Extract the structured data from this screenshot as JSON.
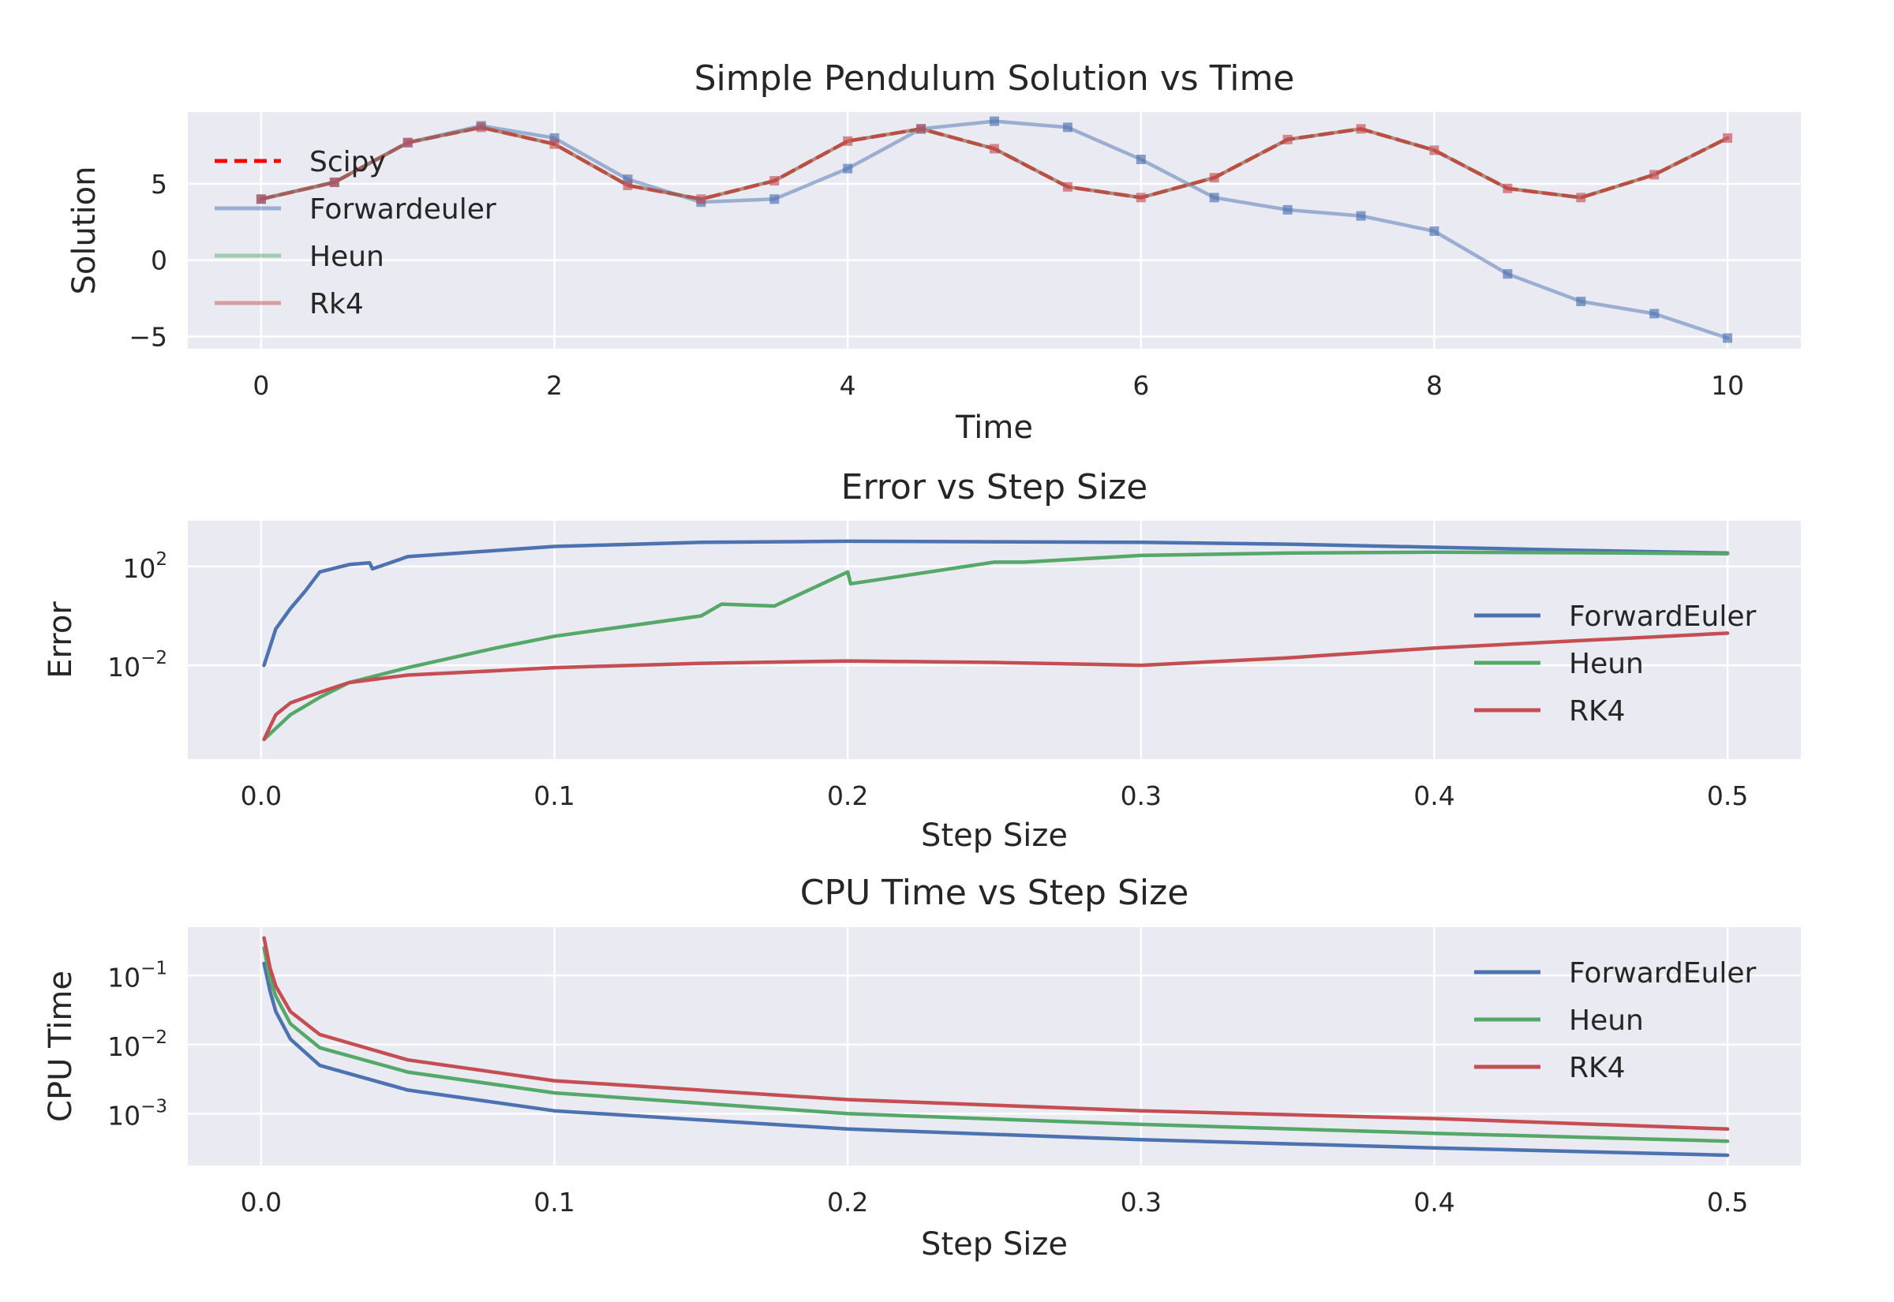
{
  "colors": {
    "background": "#eaeaf2",
    "grid": "#ffffff",
    "scipy": "#ff0000",
    "forward_euler": "#4c72b0",
    "heun": "#55a868",
    "rk4": "#c44e52"
  },
  "chart_data": [
    {
      "type": "line",
      "title": "Simple Pendulum Solution vs Time",
      "xlabel": "Time",
      "ylabel": "Solution",
      "xlim": [
        -0.5,
        10.5
      ],
      "ylim": [
        -5.8,
        9.7
      ],
      "xticks": [
        0,
        2,
        4,
        6,
        8,
        10
      ],
      "xtick_labels": [
        "0",
        "2",
        "4",
        "6",
        "8",
        "10"
      ],
      "yticks": [
        -5,
        0,
        5
      ],
      "ytick_labels": [
        "−5",
        "0",
        "5"
      ],
      "grid": true,
      "legend_position": "upper-left",
      "markers_x": [
        0,
        0.5,
        1,
        1.5,
        2,
        2.5,
        3,
        3.5,
        4,
        4.5,
        5,
        5.5,
        6,
        6.5,
        7,
        7.5,
        8,
        8.5,
        9,
        9.5,
        10
      ],
      "series": [
        {
          "name": "Scipy",
          "color_key": "scipy",
          "style": "dashed",
          "x": [
            0,
            0.5,
            1,
            1.5,
            2,
            2.5,
            3,
            3.5,
            4,
            4.5,
            5,
            5.5,
            6,
            6.5,
            7,
            7.5,
            8,
            8.5,
            9,
            9.5,
            10
          ],
          "values": [
            4.0,
            5.1,
            7.7,
            8.7,
            7.6,
            4.9,
            4.0,
            5.2,
            7.8,
            8.6,
            7.3,
            4.8,
            4.1,
            5.4,
            7.9,
            8.6,
            7.2,
            4.7,
            4.1,
            5.6,
            8.0
          ]
        },
        {
          "name": "Forwardeuler",
          "color_key": "forward_euler",
          "style": "solid",
          "alpha": 0.5,
          "x": [
            0,
            0.5,
            1,
            1.5,
            2,
            2.5,
            3,
            3.5,
            4,
            4.5,
            5,
            5.5,
            6,
            6.5,
            7,
            7.5,
            8,
            8.5,
            9,
            9.5,
            10
          ],
          "values": [
            4.0,
            5.1,
            7.7,
            8.8,
            8.0,
            5.3,
            3.8,
            4.0,
            6.0,
            8.6,
            9.1,
            8.7,
            6.6,
            4.1,
            3.3,
            2.9,
            1.9,
            -0.9,
            -2.7,
            -3.5,
            -5.1
          ]
        },
        {
          "name": "Heun",
          "color_key": "heun",
          "style": "solid",
          "alpha": 0.5,
          "x": [
            0,
            0.5,
            1,
            1.5,
            2,
            2.5,
            3,
            3.5,
            4,
            4.5,
            5,
            5.5,
            6,
            6.5,
            7,
            7.5,
            8,
            8.5,
            9,
            9.5,
            10
          ],
          "values": [
            4.0,
            5.1,
            7.7,
            8.7,
            7.6,
            4.9,
            4.0,
            5.2,
            7.8,
            8.6,
            7.3,
            4.8,
            4.1,
            5.4,
            7.9,
            8.6,
            7.2,
            4.7,
            4.1,
            5.6,
            8.0
          ]
        },
        {
          "name": "Rk4",
          "color_key": "rk4",
          "style": "solid",
          "alpha": 0.5,
          "x": [
            0,
            0.5,
            1,
            1.5,
            2,
            2.5,
            3,
            3.5,
            4,
            4.5,
            5,
            5.5,
            6,
            6.5,
            7,
            7.5,
            8,
            8.5,
            9,
            9.5,
            10
          ],
          "values": [
            4.0,
            5.1,
            7.7,
            8.7,
            7.6,
            4.9,
            4.0,
            5.2,
            7.8,
            8.6,
            7.3,
            4.8,
            4.1,
            5.4,
            7.9,
            8.6,
            7.2,
            4.7,
            4.1,
            5.6,
            8.0
          ]
        }
      ]
    },
    {
      "type": "line",
      "title": "Error vs Step Size",
      "xlabel": "Step Size",
      "ylabel": "Error",
      "yscale": "log",
      "xlim": [
        -0.025,
        0.525
      ],
      "ylim_log10": [
        -5.8,
        3.85
      ],
      "xticks": [
        0.0,
        0.1,
        0.2,
        0.3,
        0.4,
        0.5
      ],
      "xtick_labels": [
        "0.0",
        "0.1",
        "0.2",
        "0.3",
        "0.4",
        "0.5"
      ],
      "yticks_log10": [
        2,
        -2
      ],
      "ytick_base": "10",
      "ytick_exponents": [
        "2",
        "−2"
      ],
      "grid": true,
      "legend_position": "center-right",
      "series": [
        {
          "name": "ForwardEuler",
          "color_key": "forward_euler",
          "x": [
            0.001,
            0.005,
            0.01,
            0.015,
            0.02,
            0.03,
            0.037,
            0.038,
            0.05,
            0.1,
            0.15,
            0.2,
            0.25,
            0.3,
            0.35,
            0.4,
            0.45,
            0.5
          ],
          "values": [
            0.01,
            0.3,
            2,
            10,
            60,
            120,
            140,
            80,
            250,
            650,
            950,
            1050,
            1000,
            950,
            800,
            600,
            450,
            350
          ]
        },
        {
          "name": "Heun",
          "color_key": "heun",
          "x": [
            0.001,
            0.01,
            0.02,
            0.03,
            0.05,
            0.08,
            0.1,
            0.15,
            0.157,
            0.175,
            0.2,
            0.201,
            0.25,
            0.26,
            0.3,
            0.35,
            0.4,
            0.45,
            0.5
          ],
          "values": [
            1e-05,
            0.0001,
            0.0005,
            0.002,
            0.008,
            0.05,
            0.15,
            1.0,
            3.0,
            2.5,
            60,
            20,
            150,
            150,
            280,
            350,
            380,
            360,
            330
          ]
        },
        {
          "name": "RK4",
          "color_key": "rk4",
          "x": [
            0.001,
            0.005,
            0.01,
            0.02,
            0.03,
            0.05,
            0.08,
            0.1,
            0.15,
            0.2,
            0.25,
            0.3,
            0.35,
            0.4,
            0.45,
            0.5
          ],
          "values": [
            1e-05,
            0.0001,
            0.0003,
            0.0008,
            0.002,
            0.004,
            0.006,
            0.008,
            0.012,
            0.015,
            0.013,
            0.01,
            0.02,
            0.05,
            0.1,
            0.2
          ]
        }
      ]
    },
    {
      "type": "line",
      "title": "CPU Time vs Step Size",
      "xlabel": "Step Size",
      "ylabel": "CPU Time",
      "yscale": "log",
      "xlim": [
        -0.025,
        0.525
      ],
      "ylim_log10": [
        -3.75,
        -0.3
      ],
      "xticks": [
        0.0,
        0.1,
        0.2,
        0.3,
        0.4,
        0.5
      ],
      "xtick_labels": [
        "0.0",
        "0.1",
        "0.2",
        "0.3",
        "0.4",
        "0.5"
      ],
      "yticks_log10": [
        -1,
        -2,
        -3
      ],
      "ytick_base": "10",
      "ytick_exponents": [
        "−1",
        "−2",
        "−3"
      ],
      "grid": true,
      "legend_position": "upper-right",
      "series": [
        {
          "name": "ForwardEuler",
          "color_key": "forward_euler",
          "x": [
            0.001,
            0.003,
            0.005,
            0.01,
            0.02,
            0.05,
            0.1,
            0.2,
            0.3,
            0.4,
            0.5
          ],
          "values": [
            0.15,
            0.06,
            0.03,
            0.012,
            0.005,
            0.0022,
            0.0011,
            0.0006,
            0.00042,
            0.00032,
            0.00025
          ]
        },
        {
          "name": "Heun",
          "color_key": "heun",
          "x": [
            0.001,
            0.003,
            0.005,
            0.01,
            0.02,
            0.05,
            0.1,
            0.2,
            0.3,
            0.4,
            0.5
          ],
          "values": [
            0.25,
            0.09,
            0.05,
            0.02,
            0.009,
            0.004,
            0.002,
            0.001,
            0.0007,
            0.00052,
            0.0004
          ]
        },
        {
          "name": "RK4",
          "color_key": "rk4",
          "x": [
            0.001,
            0.003,
            0.005,
            0.01,
            0.02,
            0.05,
            0.1,
            0.2,
            0.3,
            0.4,
            0.5
          ],
          "values": [
            0.35,
            0.13,
            0.07,
            0.03,
            0.014,
            0.006,
            0.003,
            0.0016,
            0.0011,
            0.00085,
            0.0006
          ]
        }
      ]
    }
  ]
}
